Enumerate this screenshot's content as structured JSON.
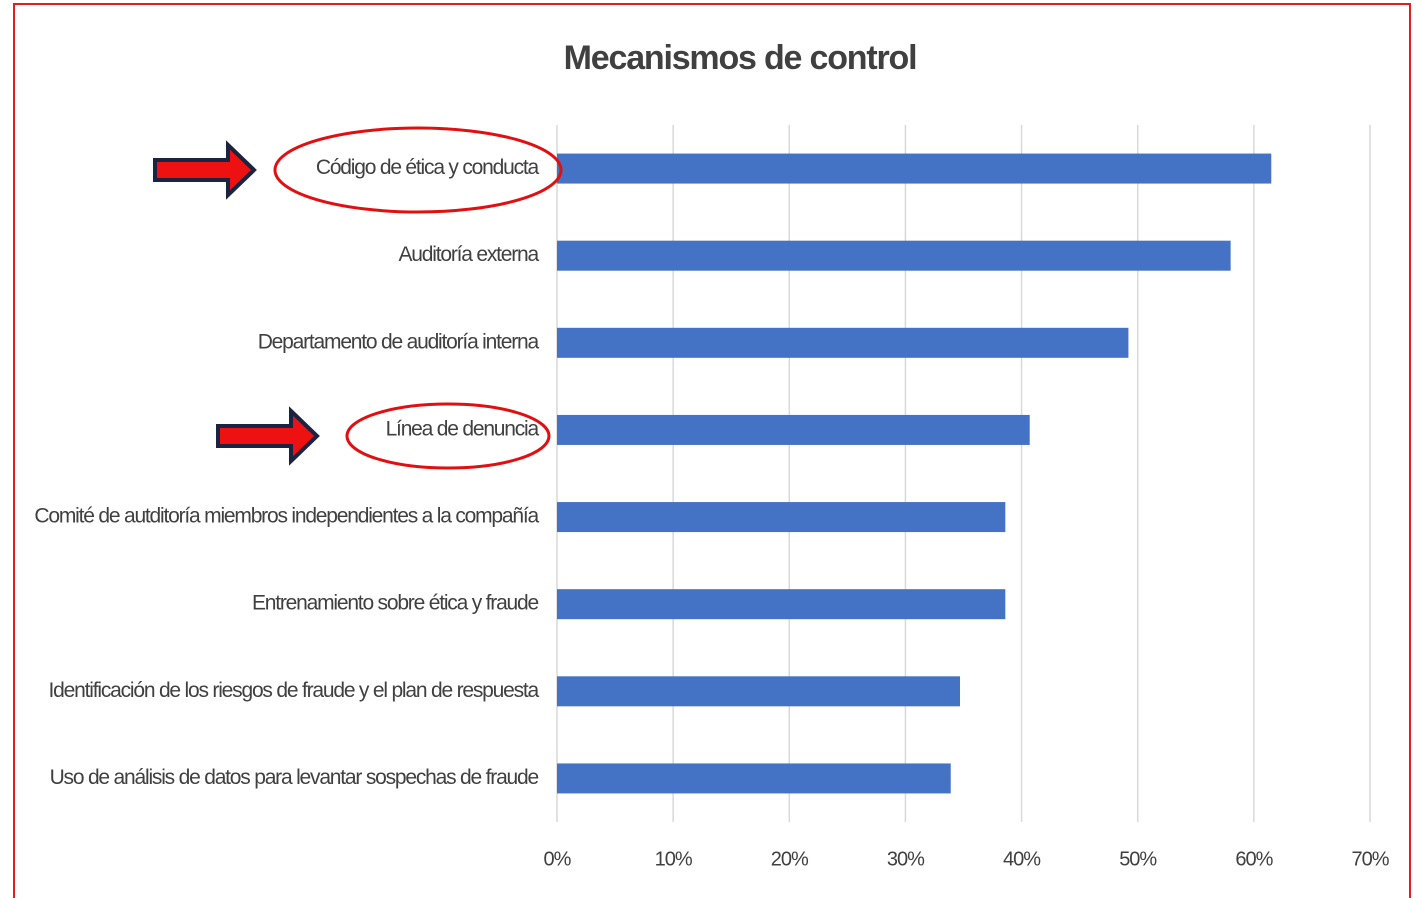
{
  "chart_data": {
    "type": "barh",
    "title": "Mecanismos de control",
    "categories": [
      "Código de ética y conducta",
      "Auditoría externa",
      "Departamento de auditoría interna",
      "Línea de denuncia",
      "Comité de autditoría miembros independientes a la compañía",
      "Entrenamiento sobre ética y fraude",
      "Identificación de los riesgos de fraude y el plan de respuesta",
      "Uso de análisis de datos para levantar sospechas de fraude"
    ],
    "values": [
      61.5,
      58,
      49.2,
      40.7,
      38.6,
      38.6,
      34.7,
      33.9
    ],
    "color": "#4472c4",
    "xlim": [
      0,
      70
    ],
    "xticks": [
      {
        "value": 0,
        "label": "0%"
      },
      {
        "value": 10,
        "label": "10%"
      },
      {
        "value": 20,
        "label": "20%"
      },
      {
        "value": 30,
        "label": "30%"
      },
      {
        "value": 40,
        "label": "40%"
      },
      {
        "value": 50,
        "label": "50%"
      },
      {
        "value": 60,
        "label": "60%"
      },
      {
        "value": 70,
        "label": "70%"
      }
    ],
    "grid": true
  }
}
